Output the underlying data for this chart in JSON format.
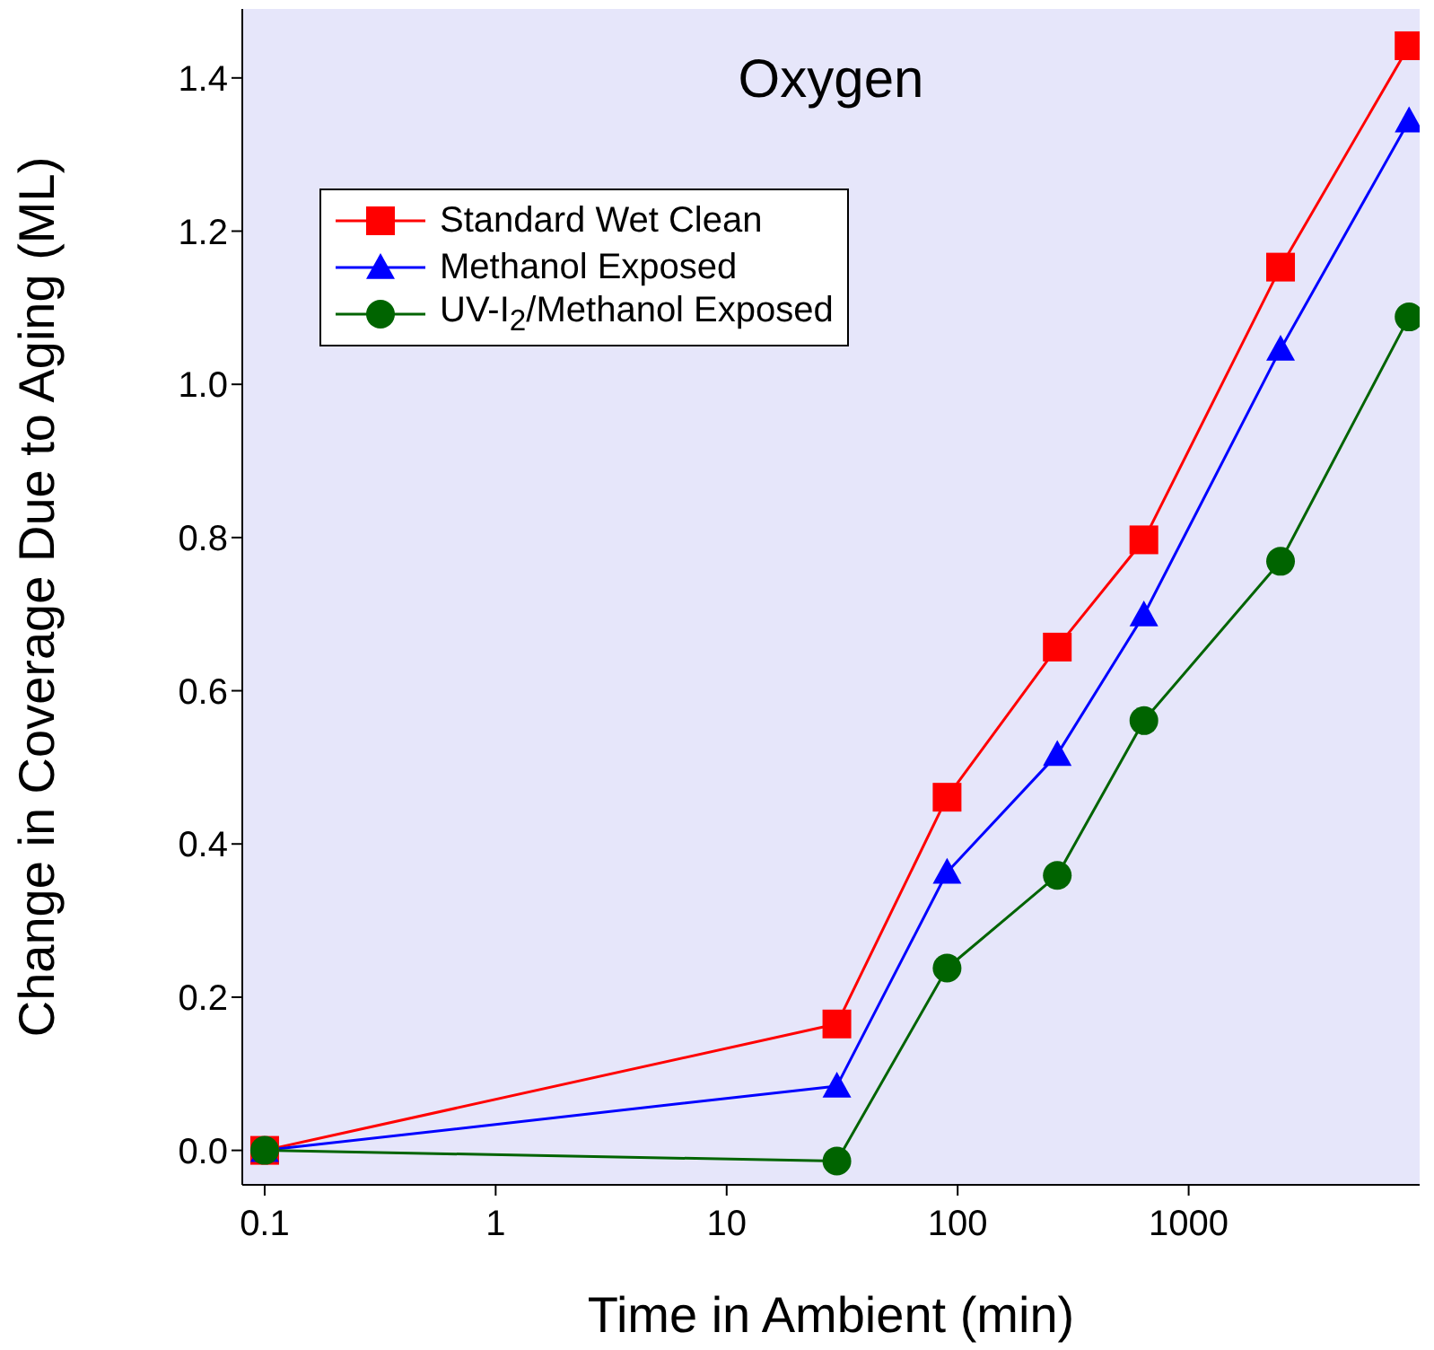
{
  "chart_data": {
    "type": "line",
    "title": "Oxygen",
    "xlabel": "Time in Ambient (min)",
    "ylabel": "Change in Coverage Due to Aging (ML)",
    "x": [
      0.1,
      30,
      90,
      270,
      640,
      2500,
      9000
    ],
    "series": [
      {
        "name": "Standard Wet Clean",
        "color": "#ff0000",
        "marker": "square",
        "values": [
          0,
          0.165,
          0.461,
          0.657,
          0.797,
          1.153,
          1.442
        ]
      },
      {
        "name": "Methanol Exposed",
        "color": "#0000ff",
        "marker": "triangle",
        "values": [
          0,
          0.084,
          0.363,
          0.517,
          0.699,
          1.046,
          1.344
        ]
      },
      {
        "name": "UV-I$_{2}$/Methanol Exposed",
        "color": "#006400",
        "marker": "circle",
        "values": [
          0,
          -0.014,
          0.238,
          0.359,
          0.561,
          0.769,
          1.088
        ]
      }
    ],
    "log": "x",
    "xlim": [
      0.08,
      10000
    ],
    "xticks": [
      0.1,
      1,
      10,
      100,
      1000
    ],
    "ylim": [
      -0.045,
      1.49
    ],
    "yticks": [
      {
        "value": 0,
        "label": "0.0"
      },
      0.2,
      0.4,
      0.6,
      0.8,
      {
        "value": 1,
        "label": "1.0"
      },
      1.2,
      1.4
    ],
    "grid": false,
    "legend": "top left",
    "line_style": "solid"
  }
}
